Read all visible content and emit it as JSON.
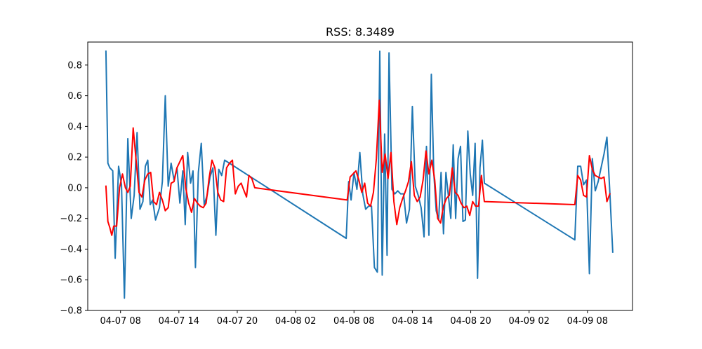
{
  "chart_data": {
    "type": "line",
    "title": "RSS: 8.3489",
    "xlabel": "",
    "ylabel": "",
    "x_range": [
      "04-07 04:38",
      "04-09 12:38"
    ],
    "ylim": [
      -0.8,
      0.95
    ],
    "x_ticks": [
      {
        "label": "04-07 08",
        "hour": 8
      },
      {
        "label": "04-07 14",
        "hour": 14
      },
      {
        "label": "04-07 20",
        "hour": 20
      },
      {
        "label": "04-08 02",
        "hour": 26
      },
      {
        "label": "04-08 08",
        "hour": 32
      },
      {
        "label": "04-08 14",
        "hour": 38
      },
      {
        "label": "04-08 20",
        "hour": 44
      },
      {
        "label": "04-09 02",
        "hour": 50
      },
      {
        "label": "04-09 08",
        "hour": 56
      }
    ],
    "y_ticks": [
      {
        "label": "−0.8",
        "value": -0.8
      },
      {
        "label": "−0.6",
        "value": -0.6
      },
      {
        "label": "−0.4",
        "value": -0.4
      },
      {
        "label": "−0.2",
        "value": -0.2
      },
      {
        "label": "0.0",
        "value": 0.0
      },
      {
        "label": "0.2",
        "value": 0.2
      },
      {
        "label": "0.4",
        "value": 0.4
      },
      {
        "label": "0.6",
        "value": 0.6
      },
      {
        "label": "0.8",
        "value": 0.8
      }
    ],
    "grid": false,
    "legend": "none",
    "series": [
      {
        "color": "#1f77b4",
        "points": [
          [
            6.5,
            0.89
          ],
          [
            6.7,
            0.16
          ],
          [
            6.9,
            0.13
          ],
          [
            7.2,
            0.11
          ],
          [
            7.45,
            -0.46
          ],
          [
            7.8,
            0.14
          ],
          [
            8.1,
            0.02
          ],
          [
            8.4,
            -0.72
          ],
          [
            8.75,
            0.32
          ],
          [
            9.1,
            -0.2
          ],
          [
            9.4,
            -0.05
          ],
          [
            9.7,
            0.36
          ],
          [
            10.0,
            -0.14
          ],
          [
            10.3,
            -0.09
          ],
          [
            10.55,
            0.14
          ],
          [
            10.8,
            0.18
          ],
          [
            11.05,
            -0.11
          ],
          [
            11.3,
            -0.08
          ],
          [
            11.6,
            -0.21
          ],
          [
            12.0,
            -0.13
          ],
          [
            12.3,
            0.04
          ],
          [
            12.6,
            0.6
          ],
          [
            12.9,
            0.01
          ],
          [
            13.2,
            0.16
          ],
          [
            13.5,
            0.05
          ],
          [
            13.8,
            0.13
          ],
          [
            14.1,
            -0.1
          ],
          [
            14.4,
            0.11
          ],
          [
            14.65,
            -0.24
          ],
          [
            14.9,
            0.23
          ],
          [
            15.2,
            0.03
          ],
          [
            15.45,
            0.11
          ],
          [
            15.7,
            -0.52
          ],
          [
            16.0,
            0.1
          ],
          [
            16.3,
            0.29
          ],
          [
            16.6,
            -0.11
          ],
          [
            16.9,
            -0.05
          ],
          [
            17.2,
            0.07
          ],
          [
            17.5,
            0.13
          ],
          [
            17.8,
            -0.31
          ],
          [
            18.1,
            0.12
          ],
          [
            18.4,
            0.08
          ],
          [
            18.7,
            0.18
          ],
          [
            31.2,
            -0.33
          ],
          [
            31.45,
            0.04
          ],
          [
            31.7,
            -0.08
          ],
          [
            32.0,
            0.1
          ],
          [
            32.3,
            -0.01
          ],
          [
            32.6,
            0.23
          ],
          [
            32.9,
            -0.04
          ],
          [
            33.2,
            -0.14
          ],
          [
            33.5,
            -0.12
          ],
          [
            33.8,
            -0.12
          ],
          [
            34.1,
            -0.52
          ],
          [
            34.4,
            -0.55
          ],
          [
            34.65,
            0.89
          ],
          [
            34.9,
            -0.57
          ],
          [
            35.15,
            0.35
          ],
          [
            35.4,
            -0.44
          ],
          [
            35.6,
            0.88
          ],
          [
            35.9,
            -0.01
          ],
          [
            36.2,
            -0.04
          ],
          [
            36.5,
            -0.02
          ],
          [
            36.8,
            -0.04
          ],
          [
            37.1,
            -0.04
          ],
          [
            37.4,
            -0.23
          ],
          [
            37.7,
            -0.14
          ],
          [
            38.0,
            0.53
          ],
          [
            38.3,
            0.01
          ],
          [
            38.6,
            -0.05
          ],
          [
            38.9,
            -0.13
          ],
          [
            39.2,
            -0.32
          ],
          [
            39.45,
            0.27
          ],
          [
            39.7,
            -0.31
          ],
          [
            39.95,
            0.74
          ],
          [
            40.2,
            0.1
          ],
          [
            40.45,
            -0.15
          ],
          [
            40.7,
            -0.21
          ],
          [
            40.95,
            0.1
          ],
          [
            41.2,
            -0.3
          ],
          [
            41.45,
            0.1
          ],
          [
            41.7,
            -0.05
          ],
          [
            41.95,
            -0.2
          ],
          [
            42.2,
            0.28
          ],
          [
            42.45,
            -0.2
          ],
          [
            42.7,
            0.19
          ],
          [
            42.95,
            0.27
          ],
          [
            43.2,
            -0.22
          ],
          [
            43.45,
            -0.21
          ],
          [
            43.7,
            0.37
          ],
          [
            43.95,
            0.09
          ],
          [
            44.2,
            -0.05
          ],
          [
            44.45,
            0.29
          ],
          [
            44.7,
            -0.59
          ],
          [
            44.95,
            0.13
          ],
          [
            45.2,
            0.31
          ],
          [
            45.4,
            0.03
          ],
          [
            54.7,
            -0.34
          ],
          [
            55.0,
            0.14
          ],
          [
            55.3,
            0.14
          ],
          [
            55.6,
            0.02
          ],
          [
            55.9,
            0.05
          ],
          [
            56.2,
            -0.56
          ],
          [
            56.5,
            0.19
          ],
          [
            56.8,
            -0.02
          ],
          [
            57.1,
            0.04
          ],
          [
            57.4,
            0.13
          ],
          [
            57.7,
            0.22
          ],
          [
            58.0,
            0.33
          ],
          [
            58.3,
            -0.03
          ],
          [
            58.6,
            -0.42
          ]
        ]
      },
      {
        "color": "#ff0000",
        "points": [
          [
            6.5,
            0.01
          ],
          [
            6.7,
            -0.22
          ],
          [
            6.9,
            -0.26
          ],
          [
            7.1,
            -0.31
          ],
          [
            7.3,
            -0.25
          ],
          [
            7.6,
            -0.25
          ],
          [
            7.9,
            0.0
          ],
          [
            8.2,
            0.09
          ],
          [
            8.5,
            0.0
          ],
          [
            8.75,
            -0.03
          ],
          [
            9.0,
            0.01
          ],
          [
            9.3,
            0.39
          ],
          [
            9.6,
            0.18
          ],
          [
            9.9,
            -0.03
          ],
          [
            10.2,
            -0.06
          ],
          [
            10.5,
            0.05
          ],
          [
            10.8,
            0.09
          ],
          [
            11.1,
            0.1
          ],
          [
            11.4,
            -0.09
          ],
          [
            11.7,
            -0.11
          ],
          [
            12.0,
            -0.03
          ],
          [
            12.3,
            -0.08
          ],
          [
            12.6,
            -0.15
          ],
          [
            12.9,
            -0.13
          ],
          [
            13.2,
            0.03
          ],
          [
            13.5,
            0.04
          ],
          [
            13.8,
            0.13
          ],
          [
            14.1,
            0.17
          ],
          [
            14.4,
            0.21
          ],
          [
            14.7,
            0.0
          ],
          [
            15.0,
            -0.1
          ],
          [
            15.3,
            -0.16
          ],
          [
            15.6,
            -0.07
          ],
          [
            15.9,
            -0.1
          ],
          [
            16.2,
            -0.12
          ],
          [
            16.5,
            -0.13
          ],
          [
            16.8,
            -0.1
          ],
          [
            17.1,
            0.06
          ],
          [
            17.4,
            0.18
          ],
          [
            17.7,
            0.13
          ],
          [
            18.0,
            -0.03
          ],
          [
            18.3,
            -0.08
          ],
          [
            18.6,
            -0.09
          ],
          [
            18.9,
            0.13
          ],
          [
            19.2,
            0.16
          ],
          [
            19.5,
            0.18
          ],
          [
            19.8,
            -0.04
          ],
          [
            20.1,
            0.01
          ],
          [
            20.4,
            0.03
          ],
          [
            20.7,
            -0.02
          ],
          [
            20.95,
            -0.06
          ],
          [
            21.2,
            0.08
          ],
          [
            21.5,
            0.06
          ],
          [
            21.8,
            0.0
          ],
          [
            31.3,
            -0.08
          ],
          [
            31.6,
            0.07
          ],
          [
            31.9,
            0.09
          ],
          [
            32.2,
            0.11
          ],
          [
            32.5,
            0.05
          ],
          [
            32.8,
            -0.03
          ],
          [
            33.1,
            0.03
          ],
          [
            33.4,
            -0.1
          ],
          [
            33.7,
            -0.12
          ],
          [
            34.0,
            -0.03
          ],
          [
            34.3,
            0.19
          ],
          [
            34.6,
            0.57
          ],
          [
            34.9,
            0.1
          ],
          [
            35.2,
            0.22
          ],
          [
            35.5,
            0.06
          ],
          [
            35.8,
            0.23
          ],
          [
            36.1,
            -0.09
          ],
          [
            36.4,
            -0.24
          ],
          [
            36.7,
            -0.13
          ],
          [
            37.0,
            -0.07
          ],
          [
            37.3,
            -0.02
          ],
          [
            37.6,
            0.04
          ],
          [
            37.9,
            0.17
          ],
          [
            38.2,
            -0.05
          ],
          [
            38.5,
            -0.09
          ],
          [
            38.8,
            -0.06
          ],
          [
            39.1,
            0.05
          ],
          [
            39.4,
            0.24
          ],
          [
            39.7,
            0.09
          ],
          [
            40.0,
            0.18
          ],
          [
            40.3,
            0.05
          ],
          [
            40.6,
            -0.2
          ],
          [
            40.9,
            -0.23
          ],
          [
            41.2,
            -0.12
          ],
          [
            41.5,
            -0.07
          ],
          [
            41.8,
            -0.05
          ],
          [
            42.1,
            0.13
          ],
          [
            42.4,
            -0.03
          ],
          [
            42.7,
            -0.05
          ],
          [
            43.0,
            -0.1
          ],
          [
            43.3,
            -0.13
          ],
          [
            43.6,
            -0.12
          ],
          [
            43.9,
            -0.18
          ],
          [
            44.2,
            -0.09
          ],
          [
            44.5,
            -0.12
          ],
          [
            44.8,
            -0.12
          ],
          [
            45.1,
            0.08
          ],
          [
            45.4,
            -0.09
          ],
          [
            54.7,
            -0.11
          ],
          [
            55.0,
            0.08
          ],
          [
            55.3,
            0.05
          ],
          [
            55.6,
            -0.05
          ],
          [
            55.9,
            -0.06
          ],
          [
            56.2,
            0.21
          ],
          [
            56.5,
            0.12
          ],
          [
            56.8,
            0.08
          ],
          [
            57.1,
            0.07
          ],
          [
            57.4,
            0.06
          ],
          [
            57.7,
            0.07
          ],
          [
            58.0,
            -0.09
          ],
          [
            58.3,
            -0.04
          ]
        ]
      }
    ]
  }
}
